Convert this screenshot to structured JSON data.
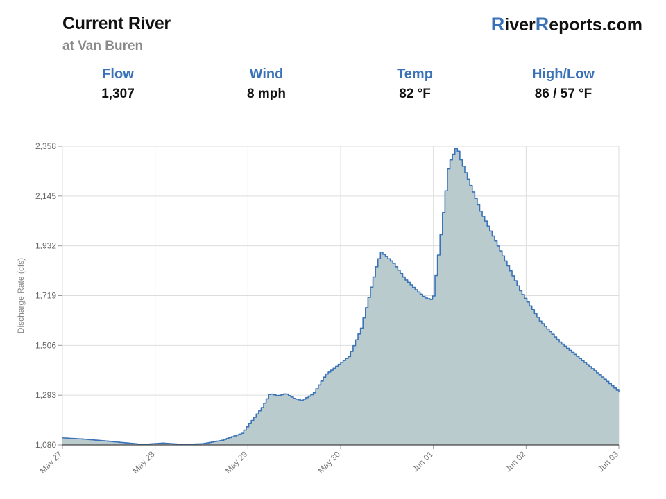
{
  "header": {
    "title": "Current River",
    "subtitle": "at Van Buren",
    "brand_first_r": "R",
    "brand_mid": "iver",
    "brand_second_r": "R",
    "brand_end": "eports.com",
    "accent_color": "#3a72b8"
  },
  "stats": [
    {
      "label": "Flow",
      "value": "1,307"
    },
    {
      "label": "Wind",
      "value": "8 mph"
    },
    {
      "label": "Temp",
      "value": "82 °F"
    },
    {
      "label": "High/Low",
      "value": "86 / 57 °F"
    }
  ],
  "chart_data": {
    "type": "area",
    "ylabel": "Discharge Rate (cfs)",
    "ylim": [
      1080,
      2358
    ],
    "yticks": [
      "1,080",
      "1,293",
      "1,506",
      "1,719",
      "1,932",
      "2,145",
      "2,358"
    ],
    "xlim_days": [
      0,
      7
    ],
    "xticks": [
      "May 27",
      "May 28",
      "May 29",
      "May 30",
      "Jun 01",
      "Jun 02",
      "Jun 03"
    ],
    "grid": true,
    "line_color": "#3a72b8",
    "fill_color": "#b9cbcd",
    "series": [
      {
        "x": [
          0,
          0.25,
          0.5,
          0.75,
          1.0,
          1.25,
          1.5,
          1.75,
          2.0,
          2.25,
          2.5,
          2.6,
          2.7,
          2.8,
          2.9,
          3.0,
          3.15,
          3.3,
          3.45,
          3.6,
          3.75,
          3.85,
          3.95,
          4.0,
          4.15,
          4.3,
          4.45,
          4.55,
          4.65,
          4.75,
          4.85,
          4.95,
          5.0,
          5.25,
          5.5,
          5.75,
          6.0,
          6.25,
          6.5,
          6.75,
          7.0
        ],
        "y": [
          1110,
          1105,
          1098,
          1090,
          1082,
          1088,
          1082,
          1085,
          1100,
          1130,
          1240,
          1300,
          1290,
          1300,
          1280,
          1270,
          1300,
          1380,
          1420,
          1460,
          1580,
          1720,
          1860,
          1905,
          1860,
          1790,
          1740,
          1710,
          1700,
          1980,
          2280,
          2358,
          2300,
          2080,
          1910,
          1740,
          1610,
          1520,
          1450,
          1380,
          1305
        ]
      }
    ]
  }
}
